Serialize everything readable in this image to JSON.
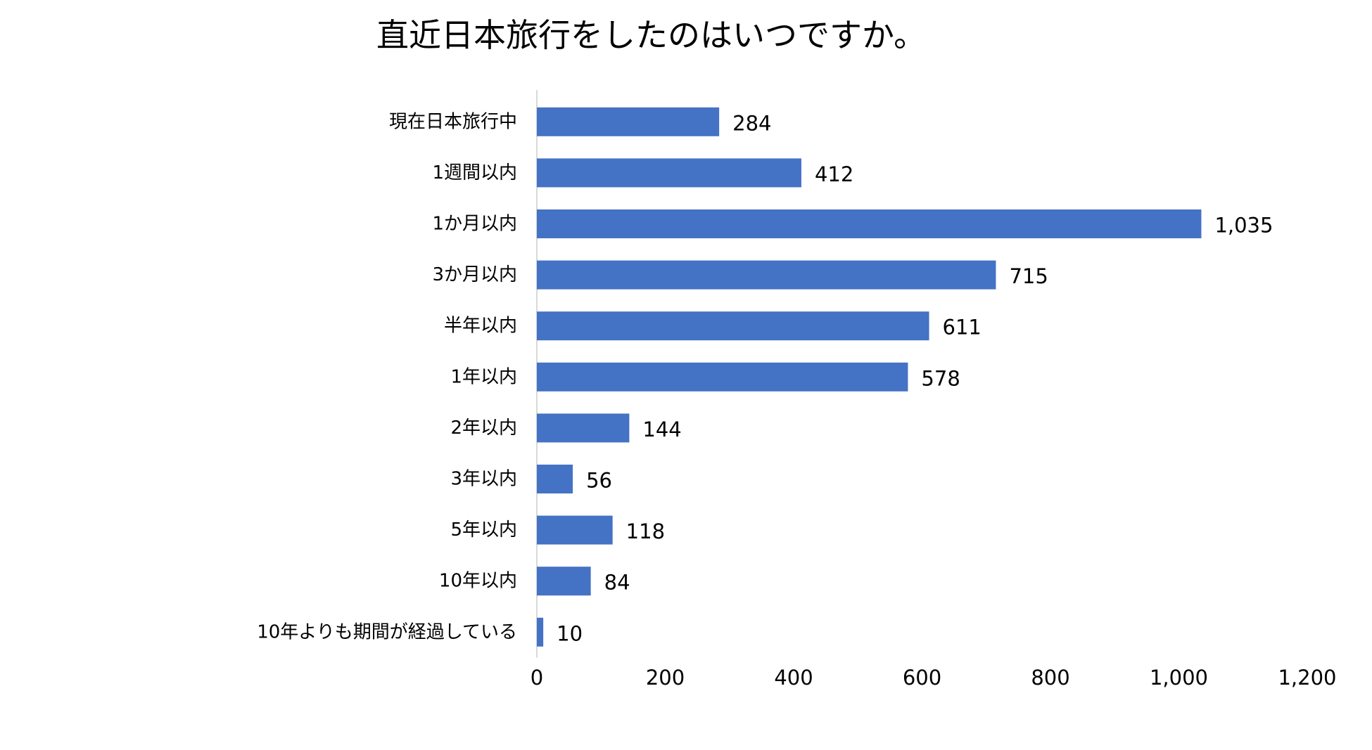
{
  "chart_data": {
    "type": "bar",
    "orientation": "horizontal",
    "title": "直近日本旅行をしたのはいつですか。",
    "categories": [
      "現在日本旅行中",
      "1週間以内",
      "1か月以内",
      "3か月以内",
      "半年以内",
      "1年以内",
      "2年以内",
      "3年以内",
      "5年以内",
      "10年以内",
      "10年よりも期間が経過している"
    ],
    "values": [
      284,
      412,
      1035,
      715,
      611,
      578,
      144,
      56,
      118,
      84,
      10
    ],
    "data_labels": [
      "284",
      "412",
      "1,035",
      "715",
      "611",
      "578",
      "144",
      "56",
      "118",
      "84",
      "10"
    ],
    "xlim": [
      0,
      1200
    ],
    "xticks": [
      0,
      200,
      400,
      600,
      800,
      1000,
      1200
    ],
    "xtick_labels": [
      "0",
      "200",
      "400",
      "600",
      "800",
      "1,000",
      "1,200"
    ],
    "xlabel": "",
    "ylabel": "",
    "grid": false,
    "legend": "none",
    "bar_color": "#4472C4",
    "axis_color": "#D9D9D9"
  }
}
